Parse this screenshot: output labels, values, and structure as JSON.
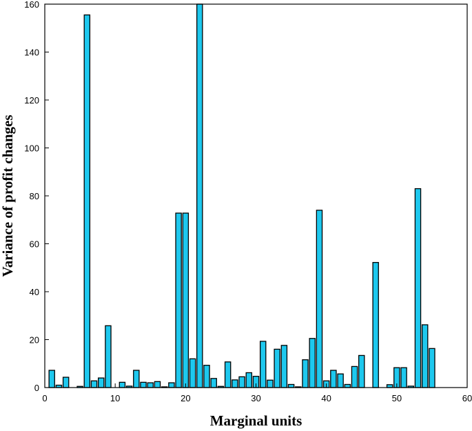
{
  "chart_data": {
    "type": "bar",
    "xlabel": "Marginal units",
    "ylabel": "Variance of profit changes",
    "xlim": [
      0,
      60
    ],
    "ylim": [
      0,
      160
    ],
    "xticks": [
      0,
      10,
      20,
      30,
      40,
      50,
      60
    ],
    "yticks": [
      0,
      20,
      40,
      60,
      80,
      100,
      120,
      140,
      160
    ],
    "grid": false,
    "bar_color": "#1ec8ee",
    "bar_edge": "#000000",
    "x": [
      1,
      2,
      3,
      4,
      5,
      6,
      7,
      8,
      9,
      10,
      11,
      12,
      13,
      14,
      15,
      16,
      17,
      18,
      19,
      20,
      21,
      22,
      23,
      24,
      25,
      26,
      27,
      28,
      29,
      30,
      31,
      32,
      33,
      34,
      35,
      36,
      37,
      38,
      39,
      40,
      41,
      42,
      43,
      44,
      45,
      46,
      47,
      48,
      49,
      50,
      51,
      52,
      53,
      54,
      55,
      56
    ],
    "values": [
      7.2,
      1,
      4.3,
      0,
      0.5,
      155.5,
      2.8,
      4,
      25.8,
      0,
      2.2,
      0.6,
      7.2,
      2.2,
      2,
      2.5,
      0.3,
      2,
      72.8,
      72.8,
      12,
      160,
      9.3,
      3.8,
      0.5,
      10.7,
      3.2,
      4.5,
      6.2,
      4.7,
      19.3,
      3.1,
      16,
      17.6,
      1.3,
      0.3,
      11.6,
      20.5,
      74,
      2.8,
      7.2,
      5.7,
      1.3,
      8.8,
      13.4,
      0,
      52.2,
      0,
      1.2,
      8.3,
      8.3,
      0.6,
      83,
      26.2,
      16.3,
      0
    ]
  }
}
